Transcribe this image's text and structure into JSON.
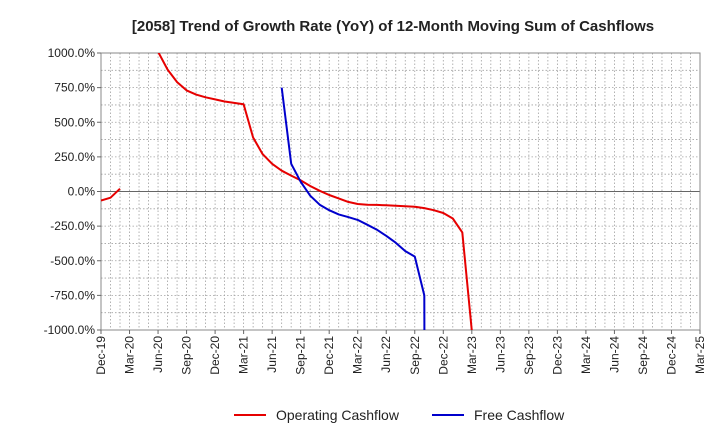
{
  "chart_data": {
    "type": "line",
    "title": "[2058]  Trend of Growth Rate (YoY) of 12-Month Moving Sum of Cashflows",
    "xlabel": "",
    "ylabel": "",
    "ylim": [
      -1000,
      1000
    ],
    "y_ticks": [
      1000,
      750,
      500,
      250,
      0,
      -250,
      -500,
      -750,
      -1000
    ],
    "y_tick_labels": [
      "1000.0%",
      "750.0%",
      "500.0%",
      "250.0%",
      "0.0%",
      "-250.0%",
      "-500.0%",
      "-750.0%",
      "-1000.0%"
    ],
    "x_start": "Dec-19",
    "x_end": "Mar-25",
    "x_tick_labels": [
      "Dec-19",
      "Mar-20",
      "Jun-20",
      "Sep-20",
      "Dec-20",
      "Mar-21",
      "Jun-21",
      "Sep-21",
      "Dec-21",
      "Mar-22",
      "Jun-22",
      "Sep-22",
      "Dec-22",
      "Mar-23",
      "Jun-23",
      "Sep-23",
      "Dec-23",
      "Mar-24",
      "Jun-24",
      "Sep-24",
      "Dec-24",
      "Mar-25"
    ],
    "grid": true,
    "legend_position": "bottom",
    "series": [
      {
        "name": "Operating Cashflow",
        "color": "#e60000",
        "points": [
          [
            "Dec-19",
            -65
          ],
          [
            "Jan-20",
            -45
          ],
          [
            "Feb-20",
            20
          ],
          [
            "Jun-20",
            1010
          ],
          [
            "Jul-20",
            880
          ],
          [
            "Aug-20",
            790
          ],
          [
            "Sep-20",
            730
          ],
          [
            "Oct-20",
            700
          ],
          [
            "Nov-20",
            680
          ],
          [
            "Dec-20",
            665
          ],
          [
            "Jan-21",
            650
          ],
          [
            "Feb-21",
            640
          ],
          [
            "Mar-21",
            630
          ],
          [
            "Apr-21",
            390
          ],
          [
            "May-21",
            270
          ],
          [
            "Jun-21",
            200
          ],
          [
            "Jul-21",
            150
          ],
          [
            "Aug-21",
            115
          ],
          [
            "Sep-21",
            80
          ],
          [
            "Oct-21",
            40
          ],
          [
            "Nov-21",
            5
          ],
          [
            "Dec-21",
            -25
          ],
          [
            "Jan-22",
            -50
          ],
          [
            "Feb-22",
            -75
          ],
          [
            "Mar-22",
            -90
          ],
          [
            "Apr-22",
            -95
          ],
          [
            "May-22",
            -97
          ],
          [
            "Jun-22",
            -100
          ],
          [
            "Jul-22",
            -103
          ],
          [
            "Aug-22",
            -106
          ],
          [
            "Sep-22",
            -110
          ],
          [
            "Oct-22",
            -120
          ],
          [
            "Nov-22",
            -135
          ],
          [
            "Dec-22",
            -155
          ],
          [
            "Jan-23",
            -195
          ],
          [
            "Feb-23",
            -295
          ],
          [
            "Mar-23",
            -1005
          ]
        ]
      },
      {
        "name": "Free Cashflow",
        "color": "#0000cc",
        "points": [
          [
            "Jul-21",
            750
          ],
          [
            "Aug-21",
            200
          ],
          [
            "Sep-21",
            70
          ],
          [
            "Oct-21",
            -30
          ],
          [
            "Nov-21",
            -95
          ],
          [
            "Dec-21",
            -135
          ],
          [
            "Jan-22",
            -165
          ],
          [
            "Feb-22",
            -185
          ],
          [
            "Mar-22",
            -205
          ],
          [
            "Apr-22",
            -240
          ],
          [
            "May-22",
            -275
          ],
          [
            "Jun-22",
            -320
          ],
          [
            "Jul-22",
            -370
          ],
          [
            "Aug-22",
            -430
          ],
          [
            "Sep-22",
            -470
          ],
          [
            "Oct-22",
            -750
          ],
          [
            "Oct-22+",
            -1005
          ]
        ]
      }
    ]
  }
}
